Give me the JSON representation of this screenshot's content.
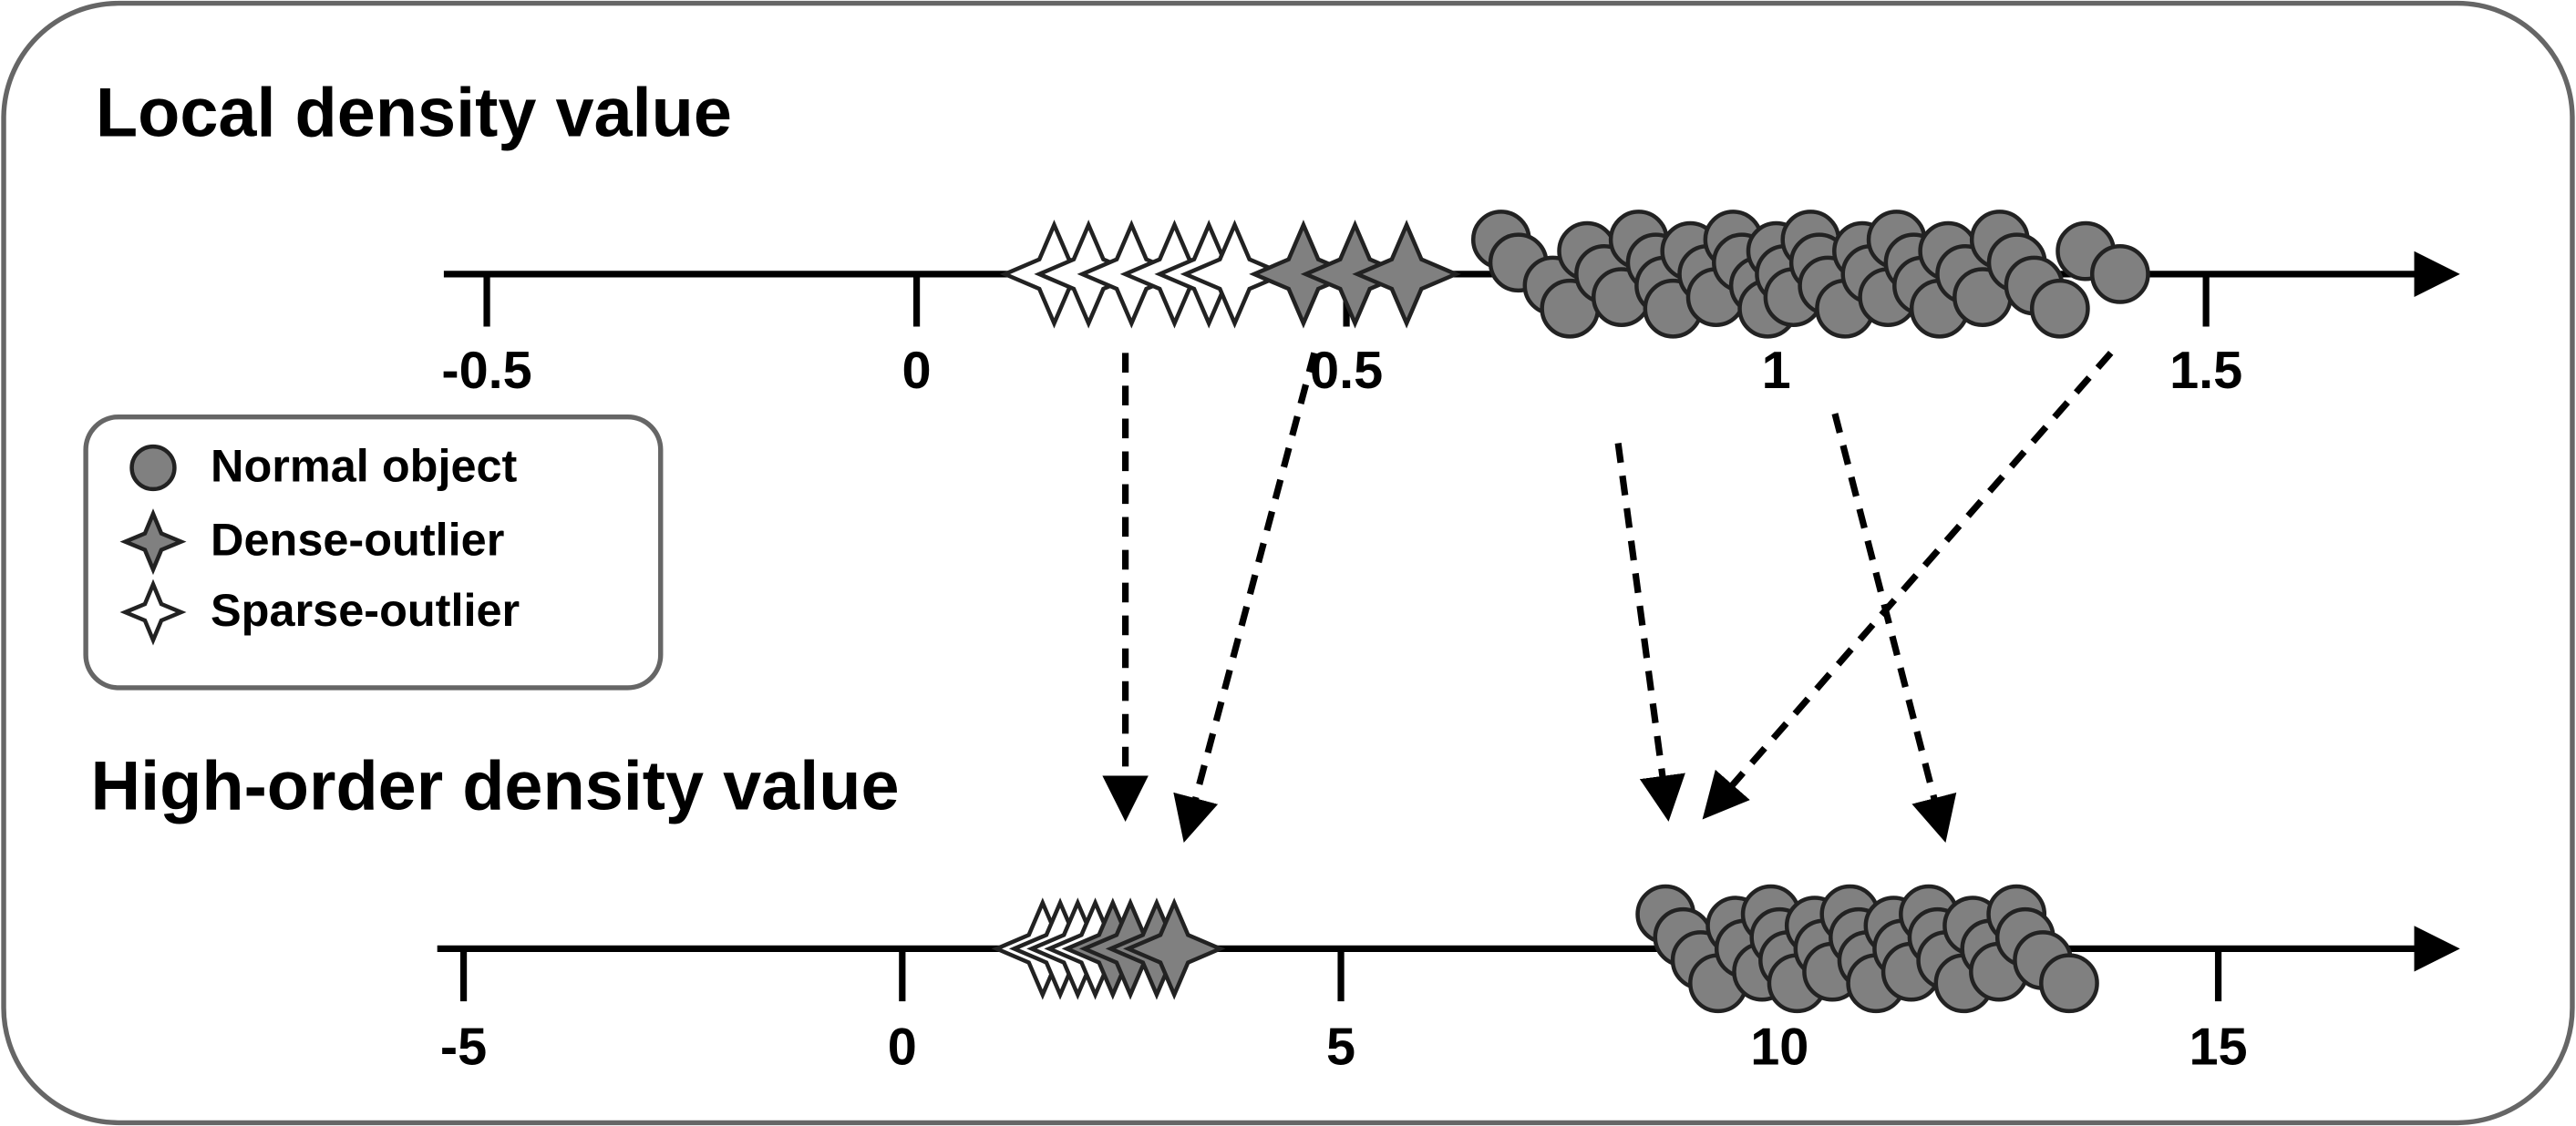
{
  "top": {
    "title": "Local density value",
    "xlim": [
      -0.55,
      1.8
    ],
    "xticks": [
      -0.5,
      0,
      0.5,
      1,
      1.5
    ],
    "sparse": [
      0.16,
      0.2,
      0.25,
      0.3,
      0.34,
      0.37
    ],
    "dense": [
      0.45,
      0.51,
      0.57
    ],
    "normal": [
      0.68,
      0.7,
      0.74,
      0.76,
      0.78,
      0.8,
      0.82,
      0.84,
      0.86,
      0.87,
      0.88,
      0.9,
      0.92,
      0.93,
      0.95,
      0.96,
      0.98,
      0.99,
      1.0,
      1.01,
      1.02,
      1.04,
      1.05,
      1.06,
      1.08,
      1.1,
      1.11,
      1.13,
      1.14,
      1.16,
      1.17,
      1.19,
      1.2,
      1.22,
      1.24,
      1.26,
      1.28,
      1.3,
      1.33,
      1.36,
      1.4
    ]
  },
  "bottom": {
    "title": "High-order density value",
    "xlim": [
      -5.3,
      17.8
    ],
    "xticks": [
      -5,
      0,
      5,
      10,
      15
    ],
    "sparse": [
      1.6,
      1.8,
      2.0,
      2.2
    ],
    "dense": [
      2.4,
      2.6,
      2.9,
      3.1
    ],
    "normal": [
      8.7,
      8.9,
      9.1,
      9.3,
      9.5,
      9.6,
      9.8,
      9.9,
      10.0,
      10.1,
      10.2,
      10.4,
      10.5,
      10.6,
      10.8,
      10.9,
      11.0,
      11.1,
      11.3,
      11.4,
      11.5,
      11.7,
      11.8,
      11.9,
      12.1,
      12.2,
      12.4,
      12.5,
      12.7,
      12.8,
      13.0,
      13.3
    ]
  },
  "legend": [
    "Normal object",
    "Dense-outlier",
    "Sparse-outlier"
  ]
}
